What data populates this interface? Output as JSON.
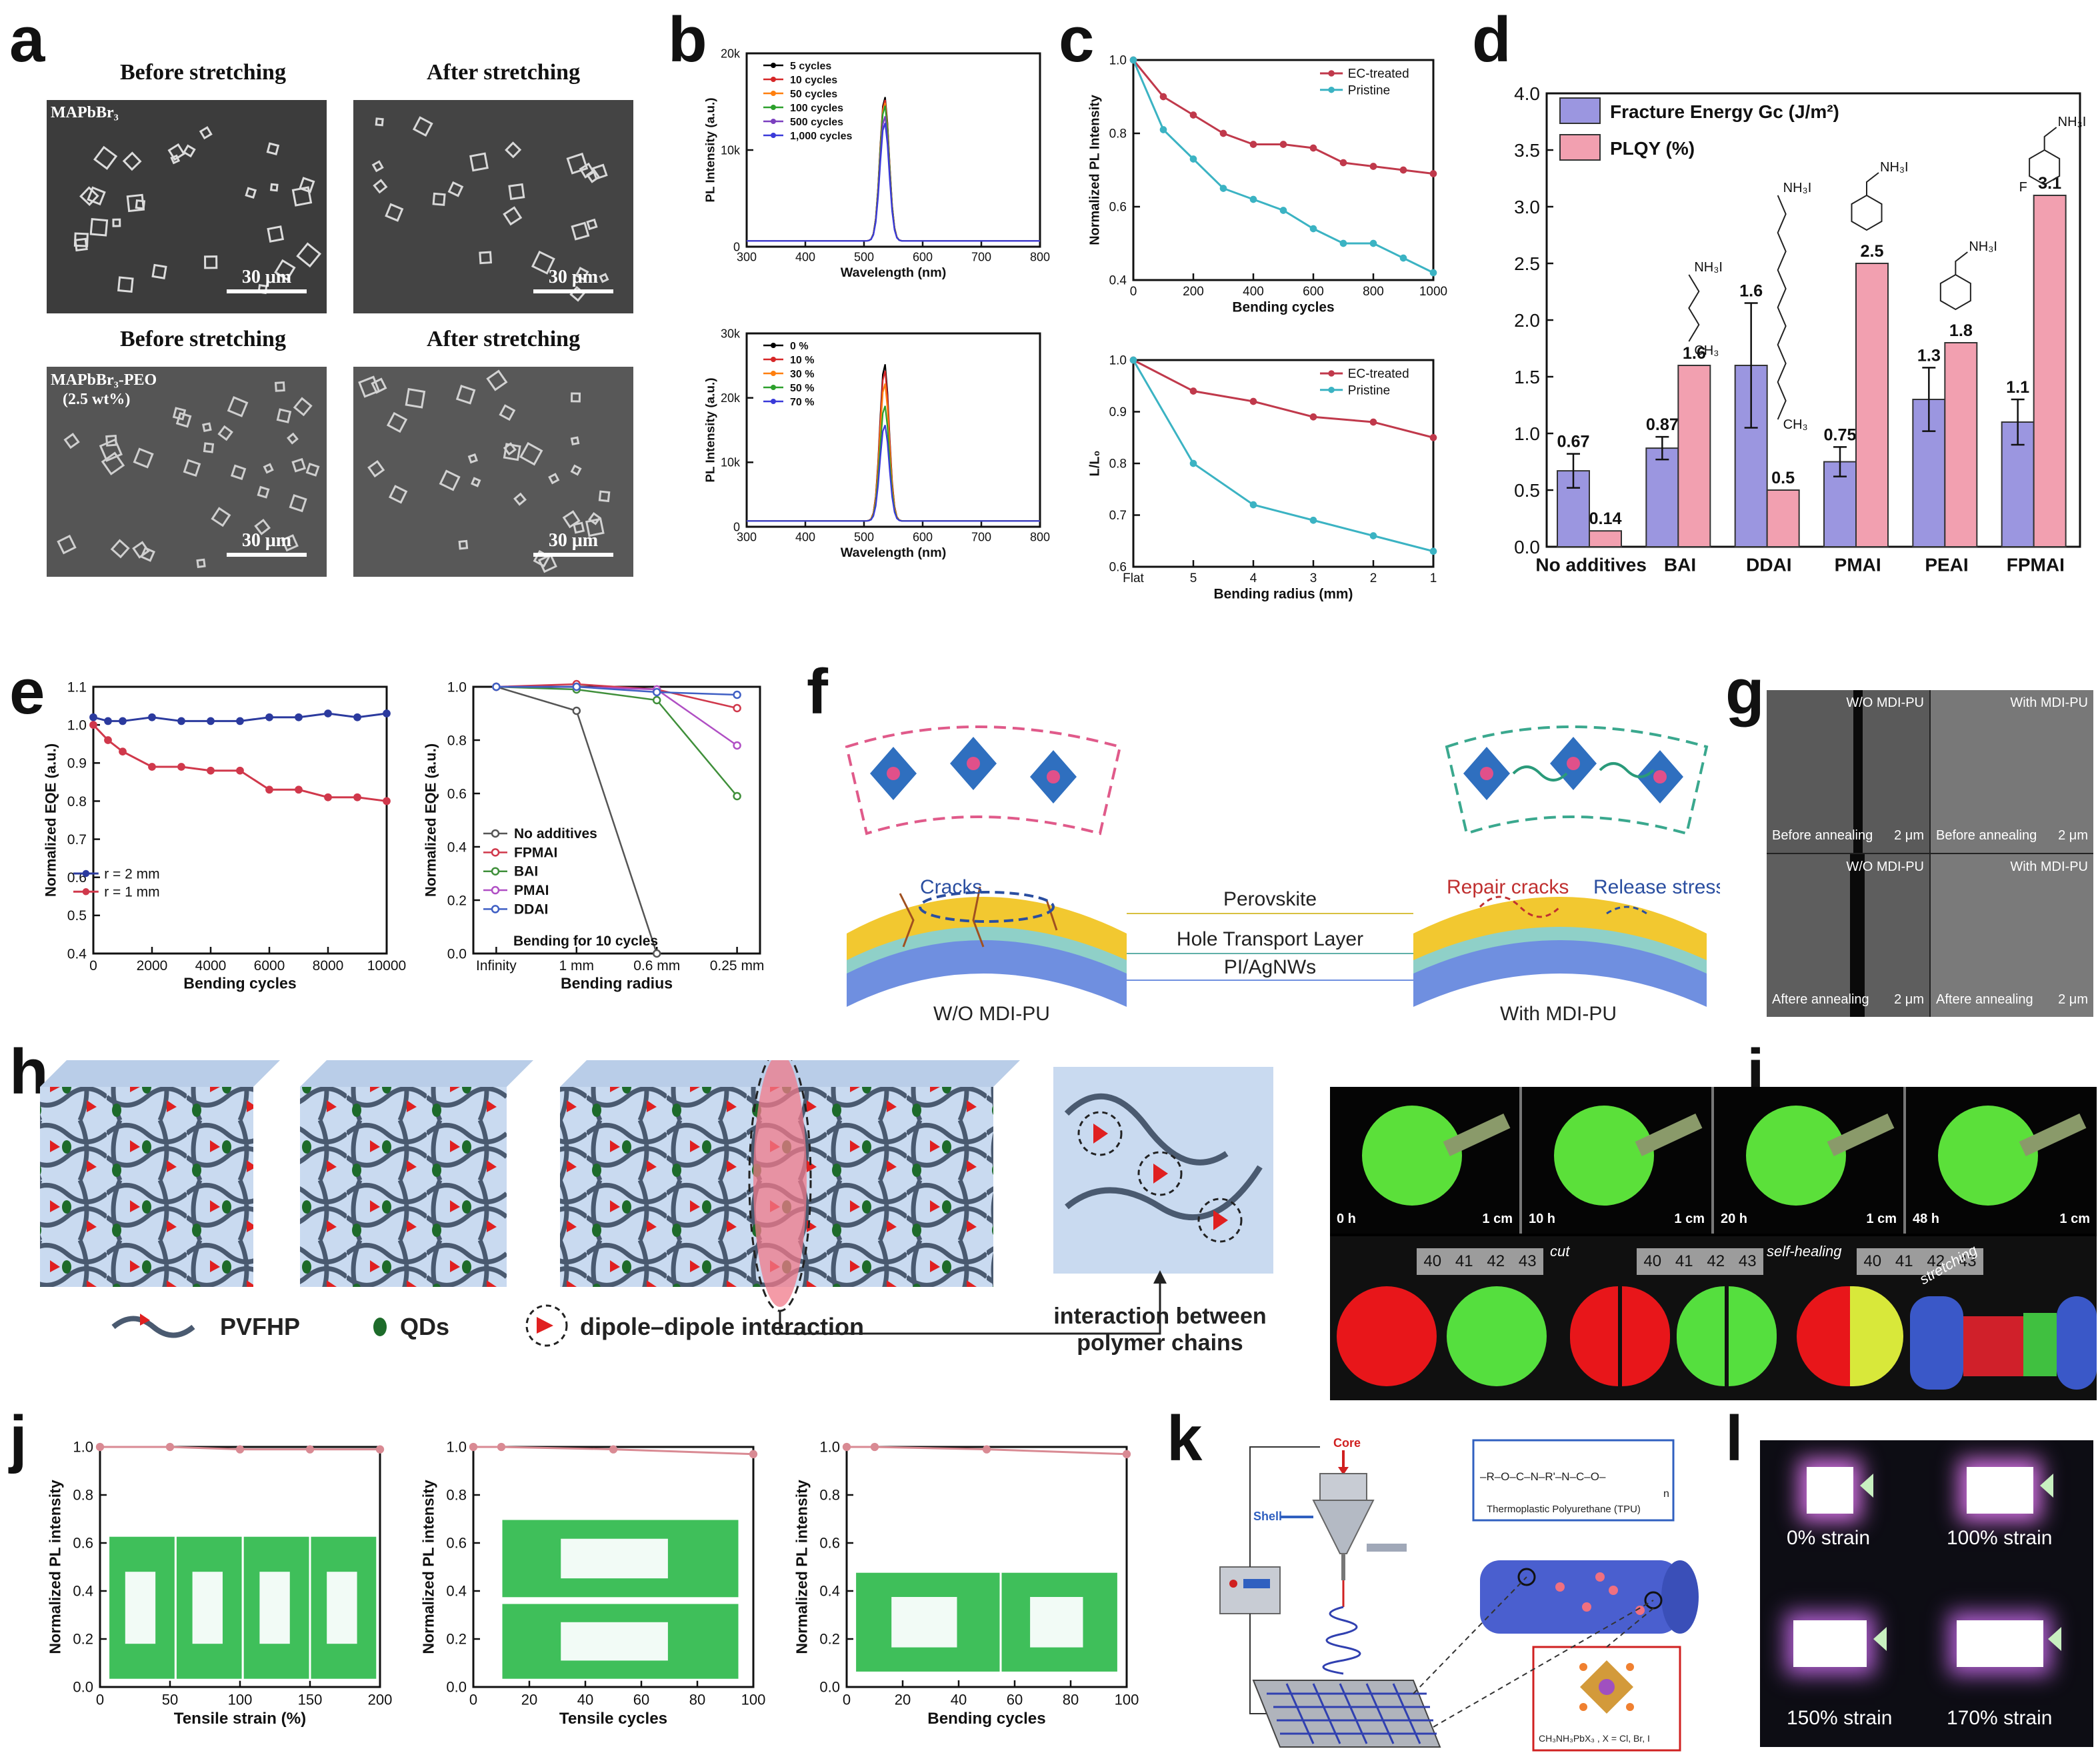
{
  "panel_letters": [
    "a",
    "b",
    "c",
    "d",
    "e",
    "f",
    "g",
    "h",
    "i",
    "j",
    "k",
    "l"
  ],
  "a": {
    "titles": [
      "Before stretching",
      "After stretching",
      "Before stretching",
      "After stretching"
    ],
    "sample1": "MAPbBr₃",
    "sample2_line1": "MAPbBr₃-PEO",
    "sample2_line2": "(2.5 wt%)",
    "scale": "30 μm"
  },
  "chart_data": [
    {
      "id": "b-top",
      "type": "line",
      "xlabel": "Wavelength (nm)",
      "ylabel": "PL Intensity (a.u.)",
      "xlim": [
        300,
        800
      ],
      "ylim": [
        0,
        20000
      ],
      "xticks": [
        "300",
        "400",
        "500",
        "600",
        "700",
        "800"
      ],
      "yticks": [
        "0",
        "10k",
        "20k"
      ],
      "legend": [
        "5 cycles",
        "10 cycles",
        "50 cycles",
        "100 cycles",
        "500 cycles",
        "1,000 cycles"
      ],
      "peak_x": 535,
      "peaks": [
        15000,
        14700,
        14400,
        14100,
        13000,
        12300
      ],
      "colors": [
        "#000000",
        "#d62728",
        "#ff7f0e",
        "#2ca02c",
        "#7b3fbf",
        "#3a3ad9"
      ]
    },
    {
      "id": "b-bottom",
      "type": "line",
      "xlabel": "Wavelength (nm)",
      "ylabel": "PL Intensity (a.u.)",
      "xlim": [
        300,
        800
      ],
      "ylim": [
        0,
        30000
      ],
      "xticks": [
        "300",
        "400",
        "500",
        "600",
        "700",
        "800"
      ],
      "yticks": [
        "0",
        "10k",
        "20k",
        "30k"
      ],
      "legend": [
        "0 %",
        "10 %",
        "30 %",
        "50 %",
        "70 %"
      ],
      "peak_x": 535,
      "peaks": [
        24500,
        23500,
        21500,
        18000,
        15000
      ],
      "colors": [
        "#000000",
        "#d62728",
        "#ff7f0e",
        "#2ca02c",
        "#3a3ad9"
      ]
    },
    {
      "id": "c-top",
      "type": "line",
      "xlabel": "Bending cycles",
      "ylabel": "Normalized PL Intensity",
      "xlim": [
        0,
        1000
      ],
      "ylim": [
        0.4,
        1.0
      ],
      "xticks": [
        "0",
        "200",
        "400",
        "600",
        "800",
        "1000"
      ],
      "yticks": [
        "0.4",
        "0.6",
        "0.8",
        "1.0"
      ],
      "x": [
        0,
        100,
        200,
        300,
        400,
        500,
        600,
        700,
        800,
        900,
        1000
      ],
      "series": [
        {
          "name": "EC-treated",
          "color": "#c0394b",
          "values": [
            1.0,
            0.9,
            0.85,
            0.8,
            0.77,
            0.77,
            0.76,
            0.72,
            0.71,
            0.7,
            0.69
          ]
        },
        {
          "name": "Pristine",
          "color": "#3bb3c3",
          "values": [
            1.0,
            0.81,
            0.73,
            0.65,
            0.62,
            0.59,
            0.54,
            0.5,
            0.5,
            0.46,
            0.42
          ]
        }
      ]
    },
    {
      "id": "c-bottom",
      "type": "line",
      "xlabel": "Bending radius (mm)",
      "ylabel": "L/L₀",
      "xlim": [
        0,
        5
      ],
      "ylim": [
        0.6,
        1.0
      ],
      "xticks": [
        "Flat",
        "5",
        "4",
        "3",
        "2",
        "1"
      ],
      "yticks": [
        "0.6",
        "0.7",
        "0.8",
        "0.9",
        "1.0"
      ],
      "x": [
        0,
        1,
        2,
        3,
        4,
        5
      ],
      "series": [
        {
          "name": "EC-treated",
          "color": "#c0394b",
          "values": [
            1.0,
            0.94,
            0.92,
            0.89,
            0.88,
            0.85
          ]
        },
        {
          "name": "Pristine",
          "color": "#3bb3c3",
          "values": [
            1.0,
            0.8,
            0.72,
            0.69,
            0.66,
            0.63
          ]
        }
      ]
    },
    {
      "id": "d",
      "type": "bar",
      "categories": [
        "No additives",
        "BAI",
        "DDAI",
        "PMAI",
        "PEAI",
        "FPMAI"
      ],
      "ylim": [
        0,
        4.0
      ],
      "yticks": [
        "0.0",
        "0.5",
        "1.0",
        "1.5",
        "2.0",
        "2.5",
        "3.0",
        "3.5",
        "4.0"
      ],
      "series": [
        {
          "name": "Fracture Energy Gc (J/m²)",
          "color": "#9b96e0",
          "values": [
            0.67,
            0.87,
            1.6,
            0.75,
            1.3,
            1.1
          ],
          "labels": [
            "0.67",
            "0.87",
            "1.6",
            "0.75",
            "1.3",
            "1.1"
          ],
          "errors": [
            0.15,
            0.1,
            0.55,
            0.13,
            0.28,
            0.2
          ]
        },
        {
          "name": "PLQY (%)",
          "color": "#f2a0b0",
          "values": [
            0.14,
            1.6,
            0.5,
            2.5,
            1.8,
            3.1
          ],
          "labels": [
            "0.14",
            "1.6",
            "0.5",
            "2.5",
            "1.8",
            "3.1"
          ]
        }
      ],
      "molecule_labels": [
        "NH₃I",
        "CH₃",
        "NH₃I",
        "CH₃",
        "NH₃I",
        "NH₃I",
        "NH₃I",
        "F"
      ]
    },
    {
      "id": "e-left",
      "type": "line",
      "xlabel": "Bending cycles",
      "ylabel": "Normalized EQE (a.u.)",
      "xlim": [
        0,
        10000
      ],
      "ylim": [
        0.4,
        1.1
      ],
      "xticks": [
        "0",
        "2000",
        "4000",
        "6000",
        "8000",
        "10000"
      ],
      "yticks": [
        "0.4",
        "0.5",
        "0.6",
        "0.7",
        "0.8",
        "0.9",
        "1.0",
        "1.1"
      ],
      "x": [
        0,
        500,
        1000,
        2000,
        3000,
        4000,
        5000,
        6000,
        7000,
        8000,
        9000,
        10000
      ],
      "series": [
        {
          "name": "r = 2 mm",
          "color": "#2b3a9e",
          "values": [
            1.02,
            1.01,
            1.01,
            1.02,
            1.01,
            1.01,
            1.01,
            1.02,
            1.02,
            1.03,
            1.02,
            1.03
          ]
        },
        {
          "name": "r = 1 mm",
          "color": "#d0384b",
          "values": [
            1.0,
            0.96,
            0.93,
            0.89,
            0.89,
            0.88,
            0.88,
            0.83,
            0.83,
            0.81,
            0.81,
            0.8
          ]
        }
      ]
    },
    {
      "id": "e-right",
      "type": "line",
      "xlabel": "Bending radius",
      "ylabel": "Normalized EQE (a.u.)",
      "ylim": [
        0.0,
        1.0
      ],
      "categories": [
        "Infinity",
        "1 mm",
        "0.6 mm",
        "0.25 mm"
      ],
      "yticks": [
        "0.0",
        "0.2",
        "0.4",
        "0.6",
        "0.8",
        "1.0"
      ],
      "annotation": "Bending for 10 cycles",
      "series": [
        {
          "name": "No additives",
          "color": "#555555",
          "values": [
            1.0,
            0.91,
            0.0,
            null
          ]
        },
        {
          "name": "FPMAI",
          "color": "#d0384b",
          "values": [
            1.0,
            1.01,
            0.99,
            0.92
          ]
        },
        {
          "name": "BAI",
          "color": "#3f8f3a",
          "values": [
            1.0,
            0.99,
            0.95,
            0.59
          ]
        },
        {
          "name": "PMAI",
          "color": "#b04fc4",
          "values": [
            1.0,
            1.0,
            0.99,
            0.78
          ]
        },
        {
          "name": "DDAI",
          "color": "#3f5fc4",
          "values": [
            1.0,
            1.0,
            0.98,
            0.97
          ]
        }
      ]
    },
    {
      "id": "j1",
      "type": "line",
      "xlabel": "Tensile strain (%)",
      "ylabel": "Normalized PL intensity",
      "xlim": [
        0,
        200
      ],
      "ylim": [
        0.0,
        1.0
      ],
      "xticks": [
        "0",
        "50",
        "100",
        "150",
        "200"
      ],
      "yticks": [
        "0.0",
        "0.2",
        "0.4",
        "0.6",
        "0.8",
        "1.0"
      ],
      "x": [
        0,
        50,
        100,
        150,
        200
      ],
      "series": [
        {
          "color": "#d98a93",
          "values": [
            1.0,
            1.0,
            0.99,
            0.99,
            0.99
          ]
        }
      ]
    },
    {
      "id": "j2",
      "type": "line",
      "xlabel": "Tensile cycles",
      "ylabel": "Normalized PL intensity",
      "xlim": [
        0,
        100
      ],
      "ylim": [
        0.0,
        1.0
      ],
      "xticks": [
        "0",
        "20",
        "40",
        "60",
        "80",
        "100"
      ],
      "yticks": [
        "0.0",
        "0.2",
        "0.4",
        "0.6",
        "0.8",
        "1.0"
      ],
      "x": [
        0,
        10,
        50,
        100
      ],
      "series": [
        {
          "color": "#d98a93",
          "values": [
            1.0,
            1.0,
            0.99,
            0.97
          ]
        }
      ]
    },
    {
      "id": "j3",
      "type": "line",
      "xlabel": "Bending cycles",
      "ylabel": "Normalized PL intensity",
      "xlim": [
        0,
        100
      ],
      "ylim": [
        0.0,
        1.0
      ],
      "xticks": [
        "0",
        "20",
        "40",
        "60",
        "80",
        "100"
      ],
      "yticks": [
        "0.0",
        "0.2",
        "0.4",
        "0.6",
        "0.8",
        "1.0"
      ],
      "x": [
        0,
        10,
        50,
        100
      ],
      "series": [
        {
          "color": "#d98a93",
          "values": [
            1.0,
            1.0,
            0.99,
            0.97
          ]
        }
      ]
    }
  ],
  "f": {
    "cracks": "Cracks",
    "layers": [
      "Perovskite",
      "Hole Transport Layer",
      "PI/AgNWs"
    ],
    "left_label": "W/O MDI-PU",
    "right_label": "With MDI-PU",
    "repair": "Repair cracks",
    "release": "Release stress"
  },
  "g": {
    "cells": [
      {
        "tag": "W/O MDI-PU",
        "state": "Before annealing",
        "scale": "2 μm"
      },
      {
        "tag": "With MDI-PU",
        "state": "Before annealing",
        "scale": "2 μm"
      },
      {
        "tag": "W/O MDI-PU",
        "state": "Aftere annealing",
        "scale": "2 μm"
      },
      {
        "tag": "With MDI-PU",
        "state": "Aftere annealing",
        "scale": "2 μm"
      }
    ]
  },
  "h": {
    "legend_pvfhp": "PVFHP",
    "legend_qds": "QDs",
    "legend_dipole": "dipole–dipole interaction",
    "interaction_line1": "interaction between",
    "interaction_line2": "polymer chains"
  },
  "i": {
    "times": [
      "0 h",
      "10 h",
      "20 h",
      "48 h"
    ],
    "scale": "1 cm",
    "ruler": [
      "40",
      "41",
      "42",
      "43"
    ],
    "cut": "cut",
    "selfhealing": "self-healing",
    "stretching": "stretching"
  },
  "k": {
    "core": "Core",
    "shell": "Shell",
    "tpu": "Thermoplastic Polyurethane (TPU)",
    "formula": "CH₃NH₃PbX₃ , X = Cl, Br, I",
    "chain": "–R–O–C–N–R'–N–C–O–",
    "n": "n"
  },
  "l": {
    "labels": [
      "0% strain",
      "100% strain",
      "150% strain",
      "170% strain"
    ]
  }
}
